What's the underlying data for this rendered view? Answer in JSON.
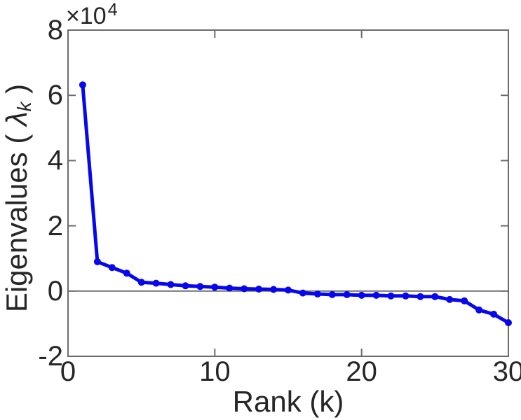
{
  "figure": {
    "multiplier": {
      "base": "×10",
      "exponent": "4"
    },
    "xlabel": "Rank (k)",
    "ylabel": {
      "prefix": "Eigenvalues ( ",
      "symbol": "λ",
      "subscript": "k",
      "suffix": " )"
    }
  },
  "chart_data": {
    "type": "line",
    "title": "",
    "xlabel": "Rank (k)",
    "ylabel": "Eigenvalues ( λ_k )",
    "y_axis_multiplier": "×10^4",
    "x": [
      1,
      2,
      3,
      4,
      5,
      6,
      7,
      8,
      9,
      10,
      11,
      12,
      13,
      14,
      15,
      16,
      17,
      18,
      19,
      20,
      21,
      22,
      23,
      24,
      25,
      26,
      27,
      28,
      29,
      30
    ],
    "values": [
      63200,
      9000,
      7200,
      5500,
      2700,
      2400,
      2000,
      1600,
      1400,
      1200,
      900,
      700,
      600,
      500,
      300,
      -600,
      -900,
      -1100,
      -1100,
      -1300,
      -1300,
      -1500,
      -1500,
      -1700,
      -1700,
      -2600,
      -3000,
      -5800,
      -7100,
      -9700
    ],
    "xlim": [
      0,
      30
    ],
    "ylim": [
      -20000,
      80000
    ],
    "xticks": {
      "values": [
        0,
        10,
        20,
        30
      ],
      "labels": [
        "0",
        "10",
        "20",
        "30"
      ]
    },
    "yticks": {
      "values": [
        -20000,
        0,
        20000,
        40000,
        60000,
        80000
      ],
      "labels": [
        "-2",
        "0",
        "2",
        "4",
        "6",
        "8"
      ]
    },
    "zero_reference_line": 0,
    "grid": false,
    "legend": null,
    "line_color": "#0707ee",
    "marker": "filled-circle",
    "marker_radius": 5,
    "line_width": 5,
    "box_color": "#6b6b6b",
    "zero_line_color": "#555555",
    "text_color": "#262626"
  }
}
